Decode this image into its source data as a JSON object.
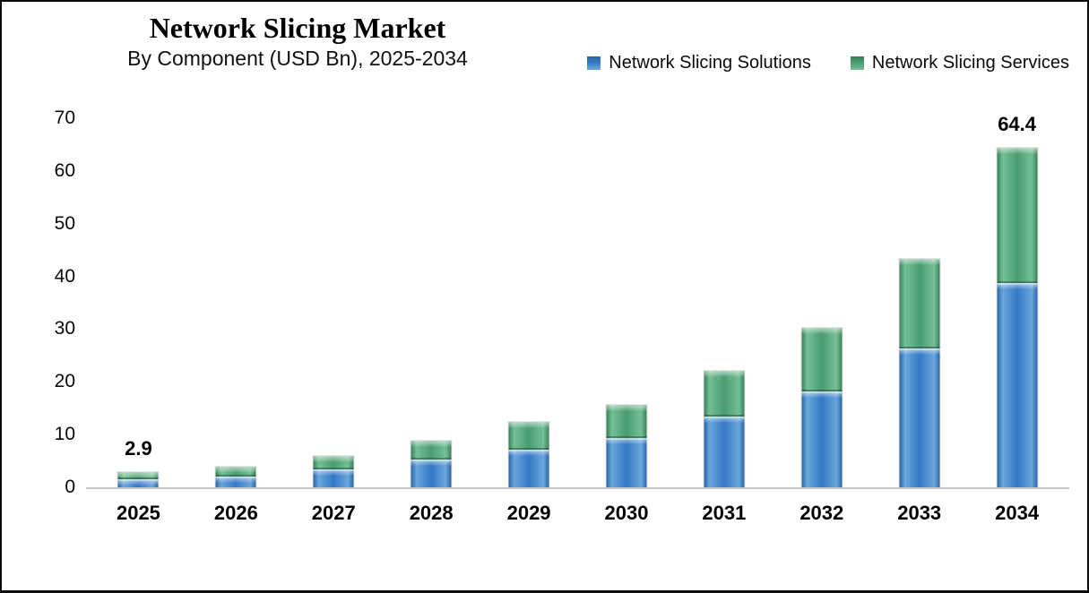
{
  "header": {
    "title": "Network Slicing Market",
    "subtitle": "By Component (USD Bn), 2025-2034"
  },
  "colors": {
    "background": "#ffffff",
    "frame_border": "#0a0a0a",
    "axis_line": "#c8c8c8",
    "text": "#000000"
  },
  "chart_data": {
    "type": "bar",
    "stacked": true,
    "title": "Network Slicing Market",
    "subtitle": "By Component (USD Bn), 2025-2034",
    "categories": [
      "2025",
      "2026",
      "2027",
      "2028",
      "2029",
      "2030",
      "2031",
      "2032",
      "2033",
      "2034"
    ],
    "series": [
      {
        "name": "Network Slicing Solutions",
        "color": "#3578c4",
        "light": "#6aa7dd",
        "dark": "#2b65a4",
        "values": [
          1.6,
          2.1,
          3.4,
          5.2,
          7.2,
          9.3,
          13.5,
          18.2,
          26.4,
          38.7
        ]
      },
      {
        "name": "Network Slicing Services",
        "color": "#4a9c71",
        "light": "#74c095",
        "dark": "#3a8059",
        "values": [
          1.3,
          1.8,
          2.6,
          3.7,
          5.2,
          6.3,
          8.6,
          12.1,
          17.0,
          25.7
        ]
      }
    ],
    "totals": [
      2.9,
      3.9,
      6.0,
      8.9,
      12.4,
      15.6,
      22.1,
      30.3,
      43.4,
      64.4
    ],
    "data_labels": [
      "2.9",
      "",
      "",
      "",
      "",
      "",
      "",
      "",
      "",
      "64.4"
    ],
    "yticks": [
      0,
      10,
      20,
      30,
      40,
      50,
      60,
      70
    ],
    "ylim": [
      0,
      70
    ],
    "xlabel": "",
    "ylabel": "",
    "grid": false,
    "legend_position": "top-right"
  }
}
